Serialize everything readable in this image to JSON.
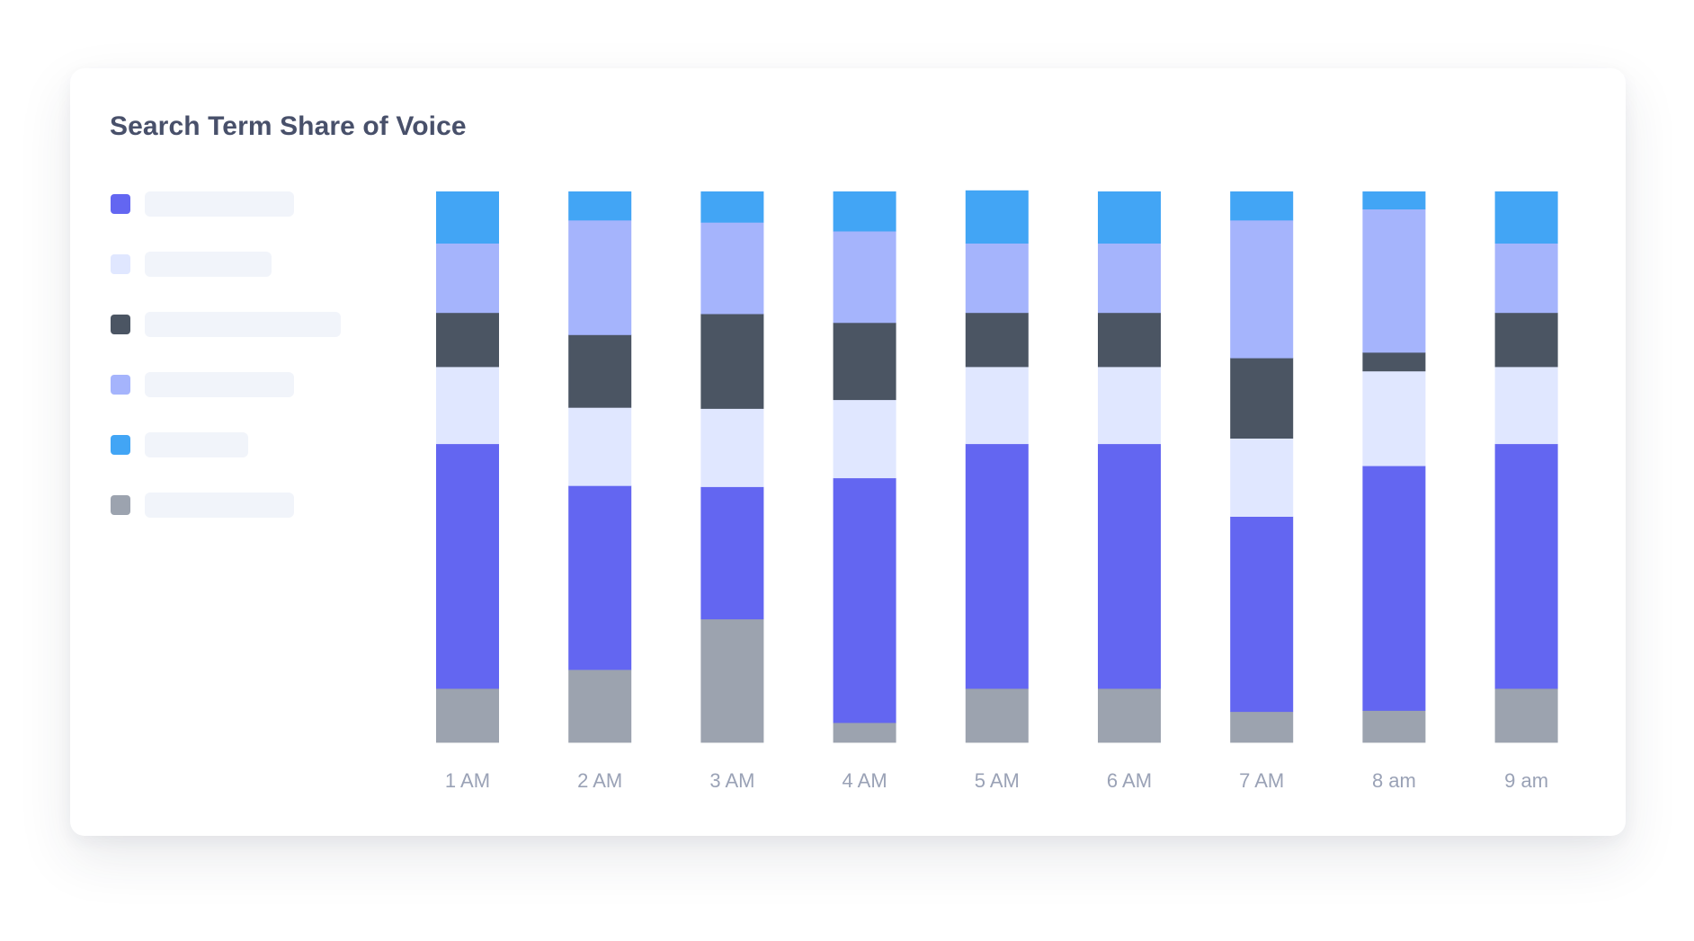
{
  "title": "Search Term Share of Voice",
  "chart_data": {
    "type": "bar",
    "stacked": true,
    "title": "Search Term Share of Voice",
    "categories": [
      "1 AM",
      "2 AM",
      "3 AM",
      "4 AM",
      "5 AM",
      "6 AM",
      "7 AM",
      "8 am",
      "9 am"
    ],
    "series": [
      {
        "color": "#9ca3af",
        "values": [
          9.8,
          13.2,
          22.4,
          3.6,
          9.8,
          9.8,
          5.6,
          5.8,
          9.8
        ]
      },
      {
        "color": "#6366f1",
        "values": [
          44.4,
          33.4,
          24.0,
          44.4,
          44.4,
          44.4,
          35.4,
          44.4,
          44.4
        ]
      },
      {
        "color": "#e0e7ff",
        "values": [
          14.0,
          14.2,
          14.2,
          14.2,
          14.0,
          14.0,
          14.2,
          17.2,
          14.0
        ]
      },
      {
        "color": "#4b5563",
        "values": [
          9.8,
          13.2,
          17.2,
          14.0,
          9.8,
          9.8,
          14.6,
          3.4,
          9.8
        ]
      },
      {
        "color": "#a5b4fc",
        "values": [
          12.6,
          20.8,
          16.6,
          16.6,
          12.6,
          12.6,
          25.0,
          26.0,
          12.6
        ]
      },
      {
        "color": "#42a5f5",
        "values": [
          9.4,
          5.2,
          5.6,
          7.2,
          9.6,
          9.4,
          5.2,
          3.2,
          9.4
        ]
      }
    ],
    "ylim": [
      0,
      100
    ],
    "grid": false,
    "legend": "left"
  }
}
